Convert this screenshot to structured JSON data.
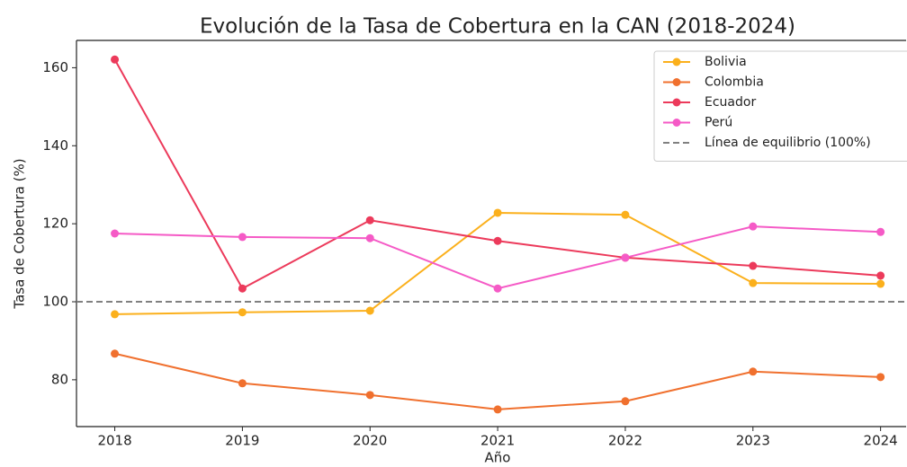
{
  "chart_data": {
    "type": "line",
    "title": "Evolución de la Tasa de Cobertura en la CAN (2018-2024)",
    "x_label": "Año",
    "y_label": "Tasa de Cobertura (%)",
    "x": [
      2018,
      2019,
      2020,
      2021,
      2022,
      2023,
      2024
    ],
    "xlim": [
      2017.7,
      2024.2
    ],
    "xticks": [
      2018,
      2019,
      2020,
      2021,
      2022,
      2023,
      2024
    ],
    "ylim": [
      68,
      167
    ],
    "yticks": [
      80,
      100,
      120,
      140,
      160
    ],
    "grid": false,
    "legend": "upper right",
    "series": [
      {
        "name": "Bolivia",
        "color": "#fbb01c",
        "values": [
          96.8,
          97.3,
          97.7,
          122.8,
          122.3,
          104.8,
          104.6
        ]
      },
      {
        "name": "Colombia",
        "color": "#f0702e",
        "values": [
          86.7,
          79.1,
          76.1,
          72.4,
          74.5,
          82.1,
          80.7
        ]
      },
      {
        "name": "Ecuador",
        "color": "#ec3a5b",
        "values": [
          162.1,
          103.4,
          120.9,
          115.6,
          111.3,
          109.2,
          106.7
        ]
      },
      {
        "name": "Perú",
        "color": "#f55ac6",
        "values": [
          117.5,
          116.6,
          116.3,
          103.4,
          111.3,
          119.3,
          117.9
        ]
      }
    ],
    "reference_line": {
      "name": "Línea de equilibrio (100%)",
      "value": 100,
      "color": "#808080"
    }
  }
}
